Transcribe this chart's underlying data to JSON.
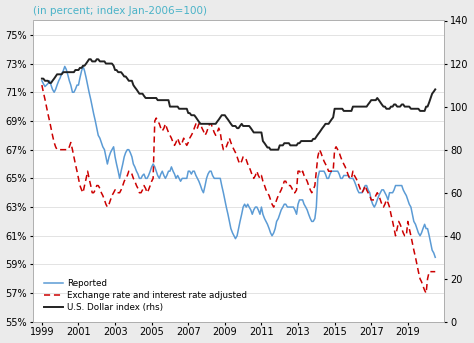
{
  "title": "(in percent; index Jan-2006=100)",
  "title_color": "#4ab3c8",
  "background_color": "#ebebeb",
  "plot_bg_color": "#ffffff",
  "ylim_left": [
    55,
    76
  ],
  "ylim_right": [
    0,
    140
  ],
  "yticks_left": [
    55,
    57,
    59,
    61,
    63,
    65,
    67,
    69,
    71,
    73,
    75
  ],
  "yticks_right": [
    0,
    20,
    40,
    60,
    80,
    100,
    120,
    140
  ],
  "xlim": [
    1998.5,
    2021.0
  ],
  "xticks": [
    1999,
    2001,
    2003,
    2005,
    2007,
    2009,
    2011,
    2013,
    2015,
    2017,
    2019
  ],
  "reported_color": "#5b9bd5",
  "adjusted_color": "#cc0000",
  "dollar_color": "#222222",
  "reported_x": [
    1999.0,
    1999.08,
    1999.17,
    1999.25,
    1999.33,
    1999.42,
    1999.5,
    1999.58,
    1999.67,
    1999.75,
    1999.83,
    1999.92,
    2000.0,
    2000.08,
    2000.17,
    2000.25,
    2000.33,
    2000.42,
    2000.5,
    2000.58,
    2000.67,
    2000.75,
    2000.83,
    2000.92,
    2001.0,
    2001.08,
    2001.17,
    2001.25,
    2001.33,
    2001.42,
    2001.5,
    2001.58,
    2001.67,
    2001.75,
    2001.83,
    2001.92,
    2002.0,
    2002.08,
    2002.17,
    2002.25,
    2002.33,
    2002.42,
    2002.5,
    2002.58,
    2002.67,
    2002.75,
    2002.83,
    2002.92,
    2003.0,
    2003.08,
    2003.17,
    2003.25,
    2003.33,
    2003.42,
    2003.5,
    2003.58,
    2003.67,
    2003.75,
    2003.83,
    2003.92,
    2004.0,
    2004.08,
    2004.17,
    2004.25,
    2004.33,
    2004.42,
    2004.5,
    2004.58,
    2004.67,
    2004.75,
    2004.83,
    2004.92,
    2005.0,
    2005.08,
    2005.17,
    2005.25,
    2005.33,
    2005.42,
    2005.5,
    2005.58,
    2005.67,
    2005.75,
    2005.83,
    2005.92,
    2006.0,
    2006.08,
    2006.17,
    2006.25,
    2006.33,
    2006.42,
    2006.5,
    2006.58,
    2006.67,
    2006.75,
    2006.83,
    2006.92,
    2007.0,
    2007.08,
    2007.17,
    2007.25,
    2007.33,
    2007.42,
    2007.5,
    2007.58,
    2007.67,
    2007.75,
    2007.83,
    2007.92,
    2008.0,
    2008.08,
    2008.17,
    2008.25,
    2008.33,
    2008.42,
    2008.5,
    2008.58,
    2008.67,
    2008.75,
    2008.83,
    2008.92,
    2009.0,
    2009.08,
    2009.17,
    2009.25,
    2009.33,
    2009.42,
    2009.5,
    2009.58,
    2009.67,
    2009.75,
    2009.83,
    2009.92,
    2010.0,
    2010.08,
    2010.17,
    2010.25,
    2010.33,
    2010.42,
    2010.5,
    2010.58,
    2010.67,
    2010.75,
    2010.83,
    2010.92,
    2011.0,
    2011.08,
    2011.17,
    2011.25,
    2011.33,
    2011.42,
    2011.5,
    2011.58,
    2011.67,
    2011.75,
    2011.83,
    2011.92,
    2012.0,
    2012.08,
    2012.17,
    2012.25,
    2012.33,
    2012.42,
    2012.5,
    2012.58,
    2012.67,
    2012.75,
    2012.83,
    2012.92,
    2013.0,
    2013.08,
    2013.17,
    2013.25,
    2013.33,
    2013.42,
    2013.5,
    2013.58,
    2013.67,
    2013.75,
    2013.83,
    2013.92,
    2014.0,
    2014.08,
    2014.17,
    2014.25,
    2014.33,
    2014.42,
    2014.5,
    2014.58,
    2014.67,
    2014.75,
    2014.83,
    2014.92,
    2015.0,
    2015.08,
    2015.17,
    2015.25,
    2015.33,
    2015.42,
    2015.5,
    2015.58,
    2015.67,
    2015.75,
    2015.83,
    2015.92,
    2016.0,
    2016.08,
    2016.17,
    2016.25,
    2016.33,
    2016.42,
    2016.5,
    2016.58,
    2016.67,
    2016.75,
    2016.83,
    2016.92,
    2017.0,
    2017.08,
    2017.17,
    2017.25,
    2017.33,
    2017.42,
    2017.5,
    2017.58,
    2017.67,
    2017.75,
    2017.83,
    2017.92,
    2018.0,
    2018.08,
    2018.17,
    2018.25,
    2018.33,
    2018.42,
    2018.5,
    2018.58,
    2018.67,
    2018.75,
    2018.83,
    2018.92,
    2019.0,
    2019.08,
    2019.17,
    2019.25,
    2019.33,
    2019.42,
    2019.5,
    2019.58,
    2019.67,
    2019.75,
    2019.83,
    2019.92,
    2020.0,
    2020.08,
    2020.17,
    2020.25,
    2020.33,
    2020.42,
    2020.5
  ],
  "reported_y": [
    71.8,
    71.6,
    71.4,
    71.5,
    71.6,
    71.8,
    71.5,
    71.2,
    71.0,
    71.2,
    71.5,
    71.8,
    72.0,
    72.3,
    72.5,
    72.8,
    72.6,
    72.2,
    71.8,
    71.5,
    71.0,
    71.0,
    71.2,
    71.5,
    71.5,
    72.0,
    72.5,
    72.8,
    72.5,
    72.0,
    71.5,
    71.0,
    70.5,
    70.0,
    69.5,
    69.0,
    68.5,
    68.0,
    67.8,
    67.5,
    67.2,
    67.0,
    66.5,
    66.0,
    66.5,
    66.8,
    67.0,
    67.2,
    66.5,
    66.0,
    65.5,
    65.0,
    65.5,
    66.0,
    66.5,
    66.8,
    67.0,
    67.0,
    66.8,
    66.5,
    66.0,
    65.8,
    65.5,
    65.3,
    65.0,
    65.0,
    65.2,
    65.3,
    65.0,
    65.0,
    65.2,
    65.5,
    65.8,
    66.0,
    65.8,
    65.5,
    65.2,
    65.0,
    65.3,
    65.5,
    65.2,
    65.0,
    65.2,
    65.5,
    65.5,
    65.8,
    65.5,
    65.3,
    65.0,
    65.2,
    65.0,
    64.8,
    65.0,
    65.0,
    65.0,
    65.0,
    65.5,
    65.5,
    65.3,
    65.5,
    65.5,
    65.2,
    65.0,
    64.8,
    64.5,
    64.2,
    64.0,
    64.5,
    65.0,
    65.3,
    65.5,
    65.5,
    65.2,
    65.0,
    65.0,
    65.0,
    65.0,
    65.0,
    64.5,
    64.0,
    63.5,
    63.0,
    62.5,
    62.0,
    61.5,
    61.2,
    61.0,
    60.8,
    61.0,
    61.5,
    62.0,
    62.5,
    63.0,
    63.2,
    63.0,
    63.2,
    63.0,
    62.8,
    62.5,
    62.8,
    63.0,
    63.0,
    62.8,
    62.5,
    63.0,
    62.5,
    62.2,
    62.0,
    61.8,
    61.5,
    61.2,
    61.0,
    61.2,
    61.5,
    62.0,
    62.2,
    62.5,
    62.8,
    63.0,
    63.2,
    63.2,
    63.0,
    63.0,
    63.0,
    63.0,
    63.0,
    62.8,
    62.5,
    63.2,
    63.5,
    63.5,
    63.5,
    63.2,
    63.0,
    62.8,
    62.5,
    62.2,
    62.0,
    62.0,
    62.2,
    63.0,
    65.0,
    65.5,
    65.5,
    65.5,
    65.5,
    65.3,
    65.0,
    65.0,
    65.3,
    65.5,
    65.5,
    65.5,
    65.5,
    65.5,
    65.3,
    65.0,
    65.0,
    65.2,
    65.2,
    65.2,
    65.2,
    65.0,
    65.0,
    65.0,
    64.8,
    64.5,
    64.2,
    64.0,
    64.0,
    64.0,
    64.2,
    64.5,
    64.5,
    64.2,
    64.0,
    63.5,
    63.2,
    63.0,
    63.2,
    63.5,
    63.8,
    64.0,
    64.2,
    64.2,
    64.0,
    63.8,
    63.5,
    64.0,
    64.0,
    64.0,
    64.2,
    64.5,
    64.5,
    64.5,
    64.5,
    64.5,
    64.2,
    64.0,
    63.8,
    63.5,
    63.2,
    63.0,
    62.5,
    62.0,
    61.8,
    61.5,
    61.2,
    61.0,
    61.2,
    61.5,
    61.8,
    61.5,
    61.5,
    61.0,
    60.5,
    60.0,
    59.8,
    59.5
  ],
  "adjusted_x": [
    1999.0,
    1999.08,
    1999.17,
    1999.25,
    1999.33,
    1999.42,
    1999.5,
    1999.58,
    1999.67,
    1999.75,
    1999.83,
    1999.92,
    2000.0,
    2000.08,
    2000.17,
    2000.25,
    2000.33,
    2000.42,
    2000.5,
    2000.58,
    2000.67,
    2000.75,
    2000.83,
    2000.92,
    2001.0,
    2001.08,
    2001.17,
    2001.25,
    2001.33,
    2001.42,
    2001.5,
    2001.58,
    2001.67,
    2001.75,
    2001.83,
    2001.92,
    2002.0,
    2002.08,
    2002.17,
    2002.25,
    2002.33,
    2002.42,
    2002.5,
    2002.58,
    2002.67,
    2002.75,
    2002.83,
    2002.92,
    2003.0,
    2003.08,
    2003.17,
    2003.25,
    2003.33,
    2003.42,
    2003.5,
    2003.58,
    2003.67,
    2003.75,
    2003.83,
    2003.92,
    2004.0,
    2004.08,
    2004.17,
    2004.25,
    2004.33,
    2004.42,
    2004.5,
    2004.58,
    2004.67,
    2004.75,
    2004.83,
    2004.92,
    2005.0,
    2005.08,
    2005.17,
    2005.25,
    2005.33,
    2005.42,
    2005.5,
    2005.58,
    2005.67,
    2005.75,
    2005.83,
    2005.92,
    2006.0,
    2006.08,
    2006.17,
    2006.25,
    2006.33,
    2006.42,
    2006.5,
    2006.58,
    2006.67,
    2006.75,
    2006.83,
    2006.92,
    2007.0,
    2007.08,
    2007.17,
    2007.25,
    2007.33,
    2007.42,
    2007.5,
    2007.58,
    2007.67,
    2007.75,
    2007.83,
    2007.92,
    2008.0,
    2008.08,
    2008.17,
    2008.25,
    2008.33,
    2008.42,
    2008.5,
    2008.58,
    2008.67,
    2008.75,
    2008.83,
    2008.92,
    2009.0,
    2009.08,
    2009.17,
    2009.25,
    2009.33,
    2009.42,
    2009.5,
    2009.58,
    2009.67,
    2009.75,
    2009.83,
    2009.92,
    2010.0,
    2010.08,
    2010.17,
    2010.25,
    2010.33,
    2010.42,
    2010.5,
    2010.58,
    2010.67,
    2010.75,
    2010.83,
    2010.92,
    2011.0,
    2011.08,
    2011.17,
    2011.25,
    2011.33,
    2011.42,
    2011.5,
    2011.58,
    2011.67,
    2011.75,
    2011.83,
    2011.92,
    2012.0,
    2012.08,
    2012.17,
    2012.25,
    2012.33,
    2012.42,
    2012.5,
    2012.58,
    2012.67,
    2012.75,
    2012.83,
    2012.92,
    2013.0,
    2013.08,
    2013.17,
    2013.25,
    2013.33,
    2013.42,
    2013.5,
    2013.58,
    2013.67,
    2013.75,
    2013.83,
    2013.92,
    2014.0,
    2014.08,
    2014.17,
    2014.25,
    2014.33,
    2014.42,
    2014.5,
    2014.58,
    2014.67,
    2014.75,
    2014.83,
    2014.92,
    2015.0,
    2015.08,
    2015.17,
    2015.25,
    2015.33,
    2015.42,
    2015.5,
    2015.58,
    2015.67,
    2015.75,
    2015.83,
    2015.92,
    2016.0,
    2016.08,
    2016.17,
    2016.25,
    2016.33,
    2016.42,
    2016.5,
    2016.58,
    2016.67,
    2016.75,
    2016.83,
    2016.92,
    2017.0,
    2017.08,
    2017.17,
    2017.25,
    2017.33,
    2017.42,
    2017.5,
    2017.58,
    2017.67,
    2017.75,
    2017.83,
    2017.92,
    2018.0,
    2018.08,
    2018.17,
    2018.25,
    2018.33,
    2018.42,
    2018.5,
    2018.58,
    2018.67,
    2018.75,
    2018.83,
    2018.92,
    2019.0,
    2019.08,
    2019.17,
    2019.25,
    2019.33,
    2019.42,
    2019.5,
    2019.58,
    2019.67,
    2019.75,
    2019.83,
    2019.92,
    2020.0,
    2020.08,
    2020.17,
    2020.25,
    2020.33,
    2020.42,
    2020.5
  ],
  "adjusted_y": [
    71.5,
    71.0,
    70.5,
    70.0,
    69.5,
    69.0,
    68.5,
    68.0,
    67.5,
    67.2,
    67.0,
    67.0,
    67.0,
    67.0,
    67.0,
    67.0,
    67.0,
    67.0,
    67.2,
    67.5,
    67.0,
    66.5,
    66.0,
    65.5,
    65.0,
    64.5,
    64.2,
    64.0,
    64.5,
    65.0,
    65.5,
    65.0,
    64.5,
    64.0,
    64.0,
    64.2,
    64.5,
    64.5,
    64.3,
    64.0,
    63.8,
    63.5,
    63.2,
    63.0,
    63.2,
    63.5,
    63.8,
    64.0,
    64.2,
    64.0,
    64.0,
    64.0,
    64.2,
    64.5,
    64.8,
    65.0,
    65.2,
    65.5,
    65.5,
    65.3,
    65.0,
    64.8,
    64.5,
    64.3,
    64.0,
    64.0,
    64.2,
    64.5,
    64.3,
    64.0,
    64.2,
    64.5,
    64.8,
    65.0,
    69.0,
    69.2,
    69.0,
    68.8,
    68.5,
    68.3,
    68.5,
    68.8,
    68.5,
    68.2,
    68.0,
    67.8,
    67.5,
    67.3,
    67.5,
    67.8,
    67.5,
    67.3,
    67.5,
    67.8,
    67.5,
    67.3,
    67.5,
    67.8,
    68.0,
    68.2,
    68.5,
    68.8,
    68.5,
    68.8,
    68.8,
    68.5,
    68.3,
    68.0,
    68.2,
    68.5,
    68.8,
    68.8,
    68.5,
    68.2,
    68.0,
    68.2,
    68.5,
    68.2,
    67.5,
    67.0,
    67.0,
    67.2,
    67.5,
    67.8,
    67.5,
    67.2,
    67.0,
    66.8,
    66.5,
    66.2,
    66.0,
    66.2,
    66.5,
    66.5,
    66.3,
    66.0,
    65.8,
    65.5,
    65.2,
    65.0,
    65.2,
    65.5,
    65.2,
    65.0,
    65.2,
    64.8,
    64.5,
    64.2,
    64.0,
    63.8,
    63.5,
    63.2,
    63.0,
    63.2,
    63.5,
    63.8,
    64.0,
    64.2,
    64.5,
    64.8,
    64.8,
    64.5,
    64.5,
    64.5,
    64.3,
    64.0,
    64.0,
    64.2,
    65.5,
    65.5,
    65.3,
    65.5,
    65.2,
    65.0,
    64.8,
    64.5,
    64.2,
    64.0,
    64.2,
    64.5,
    65.5,
    66.5,
    67.0,
    66.8,
    66.5,
    66.2,
    66.0,
    65.8,
    65.5,
    65.5,
    65.5,
    65.5,
    67.0,
    67.2,
    67.0,
    66.8,
    66.5,
    66.2,
    66.0,
    65.8,
    65.5,
    65.2,
    65.0,
    65.0,
    65.5,
    65.2,
    65.0,
    64.8,
    64.5,
    64.2,
    64.0,
    64.2,
    64.5,
    64.2,
    64.0,
    63.8,
    63.5,
    63.5,
    63.5,
    63.8,
    64.0,
    63.8,
    63.5,
    63.2,
    63.0,
    63.2,
    63.5,
    63.3,
    63.0,
    62.5,
    62.0,
    61.5,
    61.0,
    61.5,
    62.0,
    61.8,
    61.5,
    61.2,
    61.0,
    61.0,
    62.0,
    61.5,
    61.0,
    60.5,
    60.0,
    59.5,
    59.0,
    58.5,
    58.0,
    57.8,
    57.5,
    57.2,
    57.0,
    58.0,
    58.5,
    58.5,
    58.5,
    58.5,
    58.5
  ],
  "dollar_x": [
    1999.0,
    1999.08,
    1999.17,
    1999.25,
    1999.33,
    1999.42,
    1999.5,
    1999.58,
    1999.67,
    1999.75,
    1999.83,
    1999.92,
    2000.0,
    2000.08,
    2000.17,
    2000.25,
    2000.33,
    2000.42,
    2000.5,
    2000.58,
    2000.67,
    2000.75,
    2000.83,
    2000.92,
    2001.0,
    2001.08,
    2001.17,
    2001.25,
    2001.33,
    2001.42,
    2001.5,
    2001.58,
    2001.67,
    2001.75,
    2001.83,
    2001.92,
    2002.0,
    2002.08,
    2002.17,
    2002.25,
    2002.33,
    2002.42,
    2002.5,
    2002.58,
    2002.67,
    2002.75,
    2002.83,
    2002.92,
    2003.0,
    2003.08,
    2003.17,
    2003.25,
    2003.33,
    2003.42,
    2003.5,
    2003.58,
    2003.67,
    2003.75,
    2003.83,
    2003.92,
    2004.0,
    2004.08,
    2004.17,
    2004.25,
    2004.33,
    2004.42,
    2004.5,
    2004.58,
    2004.67,
    2004.75,
    2004.83,
    2004.92,
    2005.0,
    2005.08,
    2005.17,
    2005.25,
    2005.33,
    2005.42,
    2005.5,
    2005.58,
    2005.67,
    2005.75,
    2005.83,
    2005.92,
    2006.0,
    2006.08,
    2006.17,
    2006.25,
    2006.33,
    2006.42,
    2006.5,
    2006.58,
    2006.67,
    2006.75,
    2006.83,
    2006.92,
    2007.0,
    2007.08,
    2007.17,
    2007.25,
    2007.33,
    2007.42,
    2007.5,
    2007.58,
    2007.67,
    2007.75,
    2007.83,
    2007.92,
    2008.0,
    2008.08,
    2008.17,
    2008.25,
    2008.33,
    2008.42,
    2008.5,
    2008.58,
    2008.67,
    2008.75,
    2008.83,
    2008.92,
    2009.0,
    2009.08,
    2009.17,
    2009.25,
    2009.33,
    2009.42,
    2009.5,
    2009.58,
    2009.67,
    2009.75,
    2009.83,
    2009.92,
    2010.0,
    2010.08,
    2010.17,
    2010.25,
    2010.33,
    2010.42,
    2010.5,
    2010.58,
    2010.67,
    2010.75,
    2010.83,
    2010.92,
    2011.0,
    2011.08,
    2011.17,
    2011.25,
    2011.33,
    2011.42,
    2011.5,
    2011.58,
    2011.67,
    2011.75,
    2011.83,
    2011.92,
    2012.0,
    2012.08,
    2012.17,
    2012.25,
    2012.33,
    2012.42,
    2012.5,
    2012.58,
    2012.67,
    2012.75,
    2012.83,
    2012.92,
    2013.0,
    2013.08,
    2013.17,
    2013.25,
    2013.33,
    2013.42,
    2013.5,
    2013.58,
    2013.67,
    2013.75,
    2013.83,
    2013.92,
    2014.0,
    2014.08,
    2014.17,
    2014.25,
    2014.33,
    2014.42,
    2014.5,
    2014.58,
    2014.67,
    2014.75,
    2014.83,
    2014.92,
    2015.0,
    2015.08,
    2015.17,
    2015.25,
    2015.33,
    2015.42,
    2015.5,
    2015.58,
    2015.67,
    2015.75,
    2015.83,
    2015.92,
    2016.0,
    2016.08,
    2016.17,
    2016.25,
    2016.33,
    2016.42,
    2016.5,
    2016.58,
    2016.67,
    2016.75,
    2016.83,
    2016.92,
    2017.0,
    2017.08,
    2017.17,
    2017.25,
    2017.33,
    2017.42,
    2017.5,
    2017.58,
    2017.67,
    2017.75,
    2017.83,
    2017.92,
    2018.0,
    2018.08,
    2018.17,
    2018.25,
    2018.33,
    2018.42,
    2018.5,
    2018.58,
    2018.67,
    2018.75,
    2018.83,
    2018.92,
    2019.0,
    2019.08,
    2019.17,
    2019.25,
    2019.33,
    2019.42,
    2019.5,
    2019.58,
    2019.67,
    2019.75,
    2019.83,
    2019.92,
    2020.0,
    2020.08,
    2020.17,
    2020.25,
    2020.33,
    2020.42,
    2020.5
  ],
  "dollar_y": [
    113,
    113,
    112,
    112,
    112,
    111,
    111,
    112,
    113,
    114,
    115,
    115,
    115,
    115,
    116,
    116,
    116,
    116,
    116,
    116,
    116,
    116,
    117,
    117,
    117,
    118,
    118,
    119,
    119,
    120,
    121,
    122,
    122,
    121,
    121,
    121,
    122,
    122,
    121,
    121,
    121,
    121,
    120,
    120,
    120,
    120,
    120,
    119,
    117,
    117,
    116,
    116,
    116,
    115,
    114,
    114,
    113,
    112,
    112,
    112,
    110,
    109,
    108,
    107,
    106,
    106,
    106,
    105,
    104,
    104,
    104,
    104,
    104,
    104,
    104,
    104,
    103,
    103,
    103,
    103,
    103,
    103,
    103,
    103,
    100,
    100,
    100,
    100,
    100,
    100,
    99,
    99,
    99,
    99,
    99,
    99,
    97,
    97,
    96,
    96,
    96,
    95,
    94,
    93,
    92,
    92,
    92,
    92,
    92,
    92,
    92,
    92,
    92,
    92,
    92,
    93,
    94,
    95,
    96,
    96,
    96,
    95,
    94,
    93,
    92,
    91,
    91,
    91,
    90,
    90,
    91,
    92,
    91,
    91,
    91,
    91,
    91,
    90,
    89,
    88,
    88,
    88,
    88,
    88,
    88,
    84,
    83,
    82,
    81,
    81,
    80,
    80,
    80,
    80,
    80,
    80,
    82,
    82,
    82,
    83,
    83,
    83,
    83,
    82,
    82,
    82,
    82,
    82,
    83,
    83,
    84,
    84,
    84,
    84,
    84,
    84,
    84,
    84,
    85,
    85,
    86,
    87,
    88,
    89,
    90,
    91,
    92,
    92,
    92,
    93,
    94,
    95,
    99,
    99,
    99,
    99,
    99,
    99,
    98,
    98,
    98,
    98,
    98,
    98,
    100,
    100,
    100,
    100,
    100,
    100,
    100,
    100,
    100,
    100,
    101,
    102,
    103,
    103,
    103,
    103,
    104,
    103,
    102,
    101,
    100,
    100,
    99,
    99,
    99,
    100,
    100,
    101,
    101,
    100,
    100,
    100,
    101,
    101,
    100,
    100,
    100,
    100,
    99,
    99,
    99,
    99,
    99,
    99,
    98,
    98,
    98,
    98,
    100,
    100,
    102,
    104,
    106,
    107,
    108
  ]
}
